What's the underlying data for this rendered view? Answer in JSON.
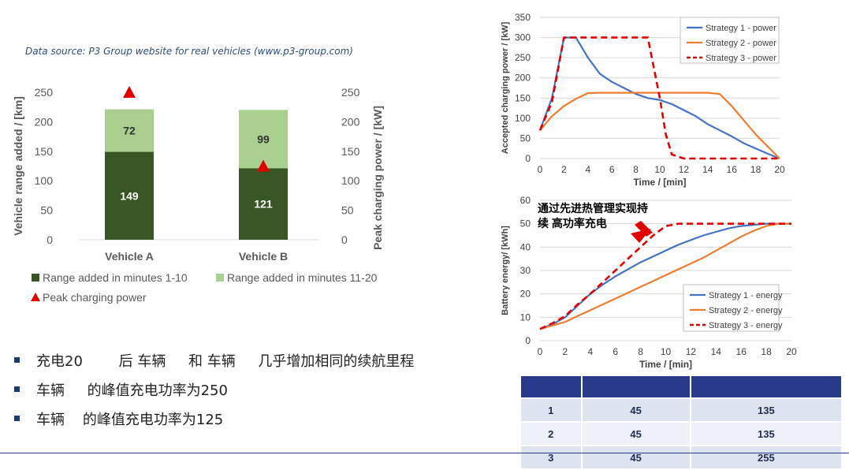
{
  "source_note": "Data source: P3 Group website for real vehicles (www.p3-group.com)",
  "bullets": [
    "充电20        后 车辆     和 车辆     几乎增加相同的续航里程",
    "车辆     的峰值充电功率为250",
    "车辆    的峰值充电功率为125"
  ],
  "table": {
    "header": [
      "",
      "",
      ""
    ],
    "rows": [
      [
        "1",
        "45",
        "135"
      ],
      [
        "2",
        "45",
        "135"
      ],
      [
        "3",
        "45",
        "255"
      ]
    ]
  },
  "colors": {
    "dark_green": "#375623",
    "light_green": "#a9d08e",
    "red": "#e00000",
    "blue": "#4472c4",
    "orange": "#ed7d31",
    "navy": "#2a3a8a"
  },
  "chart_data": [
    {
      "type": "bar",
      "title": "",
      "categories": [
        "Vehicle A",
        "Vehicle B"
      ],
      "series": [
        {
          "name": "Range added in minutes 1-10",
          "values": [
            149,
            121
          ]
        },
        {
          "name": "Range added in minutes 11-20",
          "values": [
            72,
            99
          ]
        },
        {
          "name": "Peak charging power",
          "values": [
            250,
            125
          ],
          "marker": "triangle"
        }
      ],
      "ylabel": "Vehicle range added / [km]",
      "y2label": "Peak charging power / [kW]",
      "ylim": [
        0,
        250
      ],
      "y2lim": [
        0,
        250
      ],
      "yticks": [
        0,
        50,
        100,
        150,
        200,
        250
      ],
      "y2ticks": [
        0,
        50,
        100,
        150,
        200,
        250
      ],
      "legend": "bottom",
      "grid": false
    },
    {
      "type": "line",
      "title": "",
      "xlabel": "Time / [min]",
      "ylabel": "Accepted charging power / [kW]",
      "xlim": [
        0,
        20
      ],
      "ylim": [
        0,
        350
      ],
      "xticks": [
        0,
        2,
        4,
        6,
        8,
        10,
        12,
        14,
        16,
        18,
        20
      ],
      "yticks": [
        0,
        50,
        100,
        150,
        200,
        250,
        300,
        350
      ],
      "legend": "top-right",
      "grid": true,
      "series": [
        {
          "name": "Strategy 1 - power",
          "x": [
            0,
            1,
            2,
            3,
            4,
            5,
            6,
            7,
            8,
            9,
            10,
            11,
            12,
            13,
            14,
            15,
            16,
            17,
            18,
            19,
            20
          ],
          "y": [
            70,
            150,
            300,
            300,
            250,
            210,
            190,
            175,
            160,
            150,
            145,
            135,
            120,
            105,
            85,
            70,
            55,
            38,
            25,
            12,
            0
          ]
        },
        {
          "name": "Strategy 2 - power",
          "x": [
            0,
            1,
            2,
            3,
            4,
            5,
            6,
            7,
            8,
            9,
            10,
            11,
            12,
            13,
            14,
            15,
            16,
            17,
            18,
            19,
            20
          ],
          "y": [
            70,
            105,
            130,
            148,
            162,
            163,
            163,
            163,
            163,
            163,
            163,
            163,
            163,
            163,
            163,
            160,
            130,
            95,
            60,
            30,
            0
          ]
        },
        {
          "name": "Strategy 3 - power",
          "x": [
            0,
            1,
            2,
            3,
            4,
            5,
            6,
            7,
            8,
            9,
            10,
            10.5,
            11,
            12,
            13,
            14,
            15,
            16,
            17,
            18,
            19,
            20
          ],
          "y": [
            70,
            140,
            300,
            300,
            300,
            300,
            300,
            300,
            300,
            300,
            150,
            60,
            10,
            0,
            0,
            0,
            0,
            0,
            0,
            0,
            0,
            0
          ]
        }
      ]
    },
    {
      "type": "line",
      "title": "",
      "xlabel": "Time / [min]",
      "ylabel": "Battery energy/ [kWh]",
      "xlim": [
        0,
        20
      ],
      "ylim": [
        0,
        60
      ],
      "xticks": [
        0,
        2,
        4,
        6,
        8,
        10,
        12,
        14,
        16,
        18,
        20
      ],
      "yticks": [
        0,
        10,
        20,
        30,
        40,
        50,
        60
      ],
      "legend": "bottom-right",
      "grid": true,
      "annotation": "通过先进热管理实现持续 高功率充电",
      "annotation_lines": [
        "通过先进热管理实现持",
        "续 高功率充电"
      ],
      "series": [
        {
          "name": "Strategy 1 - energy",
          "x": [
            0,
            1,
            2,
            3,
            4,
            5,
            6,
            7,
            8,
            9,
            10,
            11,
            12,
            13,
            14,
            15,
            16,
            17,
            18,
            19,
            20
          ],
          "y": [
            5,
            7,
            10,
            15,
            20,
            24,
            27.5,
            30.5,
            33.5,
            36,
            38.5,
            41,
            43,
            45,
            46.5,
            48,
            49,
            49.5,
            50,
            50,
            50
          ]
        },
        {
          "name": "Strategy 2 - energy",
          "x": [
            0,
            1,
            2,
            3,
            4,
            5,
            6,
            7,
            8,
            9,
            10,
            11,
            12,
            13,
            14,
            15,
            16,
            17,
            18,
            19,
            20
          ],
          "y": [
            5,
            6.5,
            8,
            10.5,
            13,
            15.5,
            18,
            20.5,
            23,
            25.5,
            28,
            30.5,
            33,
            35.5,
            38.5,
            41.5,
            44.5,
            47,
            49,
            50,
            50
          ]
        },
        {
          "name": "Strategy 3 - energy",
          "x": [
            0,
            1,
            2,
            3,
            4,
            5,
            6,
            7,
            8,
            9,
            10,
            11,
            12,
            13,
            14,
            15,
            16,
            17,
            18,
            19,
            20
          ],
          "y": [
            5,
            7.5,
            10.5,
            15.5,
            20,
            25,
            30,
            35,
            40,
            45,
            49,
            50,
            50,
            50,
            50,
            50,
            50,
            50,
            50,
            50,
            50
          ]
        }
      ]
    }
  ]
}
